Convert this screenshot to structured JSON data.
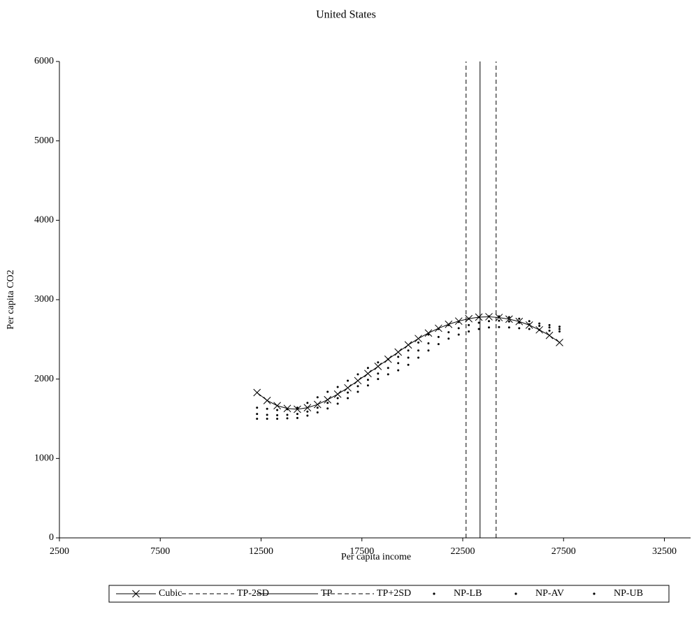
{
  "chart_data": {
    "type": "line",
    "title": "United States",
    "x_label": "Per capita income",
    "y_label": "Per capita CO2",
    "xlim": [
      2500,
      33800
    ],
    "xticks": [
      2500,
      7500,
      12500,
      17500,
      22500,
      27500,
      32500
    ],
    "ylim": [
      0,
      6000
    ],
    "yticks": [
      0,
      1000,
      2000,
      3000,
      4000,
      5000,
      6000
    ],
    "series": [
      {
        "name": "Cubic",
        "color": "#000000",
        "style": "line-x-marker",
        "x": [
          12300,
          12800,
          13300,
          13800,
          14300,
          14800,
          15300,
          15800,
          16300,
          16800,
          17300,
          17800,
          18300,
          18800,
          19300,
          19800,
          20300,
          20800,
          21300,
          21800,
          22300,
          22800,
          23300,
          23800,
          24300,
          24800,
          25300,
          25800,
          26300,
          26800,
          27300
        ],
        "values": [
          1830,
          1730,
          1665,
          1630,
          1620,
          1640,
          1680,
          1740,
          1810,
          1890,
          1980,
          2070,
          2160,
          2250,
          2340,
          2430,
          2510,
          2580,
          2640,
          2690,
          2730,
          2760,
          2780,
          2785,
          2775,
          2755,
          2725,
          2680,
          2620,
          2550,
          2460
        ]
      },
      {
        "name": "TP-2SD",
        "color": "#000000",
        "style": "dashed",
        "x": [
          22666,
          22666
        ],
        "values": [
          0,
          6000
        ]
      },
      {
        "name": "TP",
        "color": "#000000",
        "style": "solid",
        "x": [
          23359,
          23359
        ],
        "values": [
          0,
          6000
        ]
      },
      {
        "name": "TP+2SD",
        "color": "#000000",
        "style": "dashed",
        "x": [
          24156,
          24156
        ],
        "values": [
          0,
          6000
        ]
      },
      {
        "name": "NP-LB",
        "color": "#000000",
        "style": "dots",
        "x": [
          12300,
          12800,
          13300,
          13800,
          14300,
          14800,
          15300,
          15800,
          16300,
          16800,
          17300,
          17800,
          18300,
          18800,
          19300,
          19800,
          20300,
          20800,
          21300,
          21800,
          22300,
          22800,
          23300,
          23800,
          24300,
          24800,
          25300,
          25800,
          26300,
          26800,
          27300
        ],
        "values": [
          1500,
          1500,
          1500,
          1505,
          1510,
          1540,
          1580,
          1630,
          1690,
          1760,
          1840,
          1920,
          2000,
          2060,
          2110,
          2180,
          2270,
          2360,
          2440,
          2510,
          2560,
          2600,
          2630,
          2650,
          2655,
          2650,
          2640,
          2630,
          2620,
          2610,
          2600
        ]
      },
      {
        "name": "NP-AV",
        "color": "#000000",
        "style": "dots",
        "x": [
          12300,
          12800,
          13300,
          13800,
          14300,
          14800,
          15300,
          15800,
          16300,
          16800,
          17300,
          17800,
          18300,
          18800,
          19300,
          19800,
          20300,
          20800,
          21300,
          21800,
          22300,
          22800,
          23300,
          23800,
          24300,
          24800,
          25300,
          25800,
          26300,
          26800,
          27300
        ],
        "values": [
          1560,
          1550,
          1545,
          1550,
          1560,
          1590,
          1640,
          1700,
          1760,
          1830,
          1910,
          1990,
          2070,
          2140,
          2200,
          2270,
          2360,
          2450,
          2530,
          2590,
          2640,
          2680,
          2710,
          2730,
          2735,
          2725,
          2710,
          2690,
          2670,
          2650,
          2630
        ]
      },
      {
        "name": "NP-UB",
        "color": "#000000",
        "style": "dots",
        "x": [
          12300,
          12800,
          13300,
          13800,
          14300,
          14800,
          15300,
          15800,
          16300,
          16800,
          17300,
          17800,
          18300,
          18800,
          19300,
          19800,
          20300,
          20800,
          21300,
          21800,
          22300,
          22800,
          23300,
          23800,
          24300,
          24800,
          25300,
          25800,
          26300,
          26800,
          27300
        ],
        "values": [
          1640,
          1625,
          1610,
          1620,
          1640,
          1700,
          1770,
          1840,
          1900,
          1980,
          2060,
          2140,
          2210,
          2250,
          2280,
          2360,
          2460,
          2560,
          2630,
          2680,
          2720,
          2760,
          2780,
          2790,
          2790,
          2780,
          2760,
          2730,
          2700,
          2680,
          2660
        ]
      }
    ]
  }
}
